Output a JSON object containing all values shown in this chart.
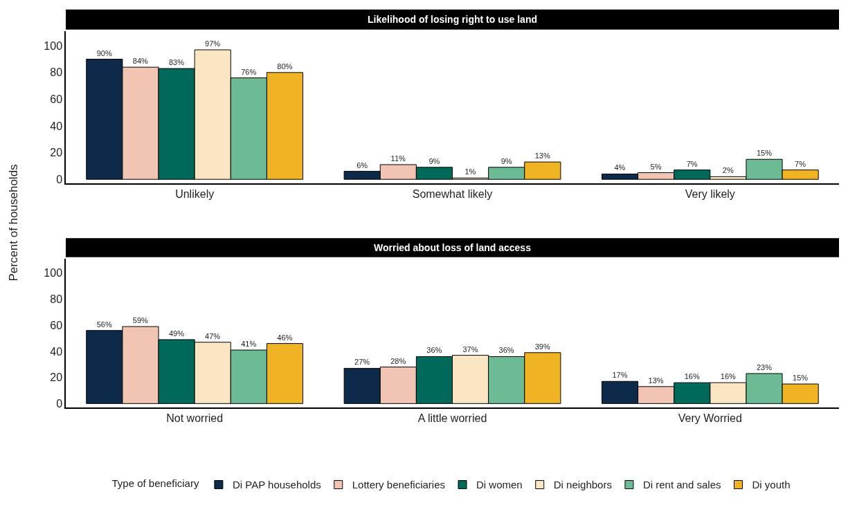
{
  "chart_data": [
    {
      "type": "bar",
      "title": "Likelihood of losing right to use land",
      "ylabel": "Percent of households",
      "categories": [
        "Unlikely",
        "Somewhat likely",
        "Very likely"
      ],
      "ylim": [
        -3,
        111
      ],
      "yticks": [
        0,
        20,
        40,
        60,
        80,
        100
      ],
      "series": [
        {
          "color": "#0d2a4a",
          "values": [
            90,
            6,
            4
          ],
          "value_labels": [
            "90%",
            "6%",
            "4%"
          ]
        },
        {
          "color": "#f2c4b4",
          "values": [
            84,
            11,
            5
          ],
          "value_labels": [
            "84%",
            "11%",
            "5%"
          ]
        },
        {
          "color": "#00695a",
          "values": [
            83,
            9,
            7
          ],
          "value_labels": [
            "83%",
            "9%",
            "7%"
          ]
        },
        {
          "color": "#fbe6c4",
          "values": [
            97,
            1,
            2
          ],
          "value_labels": [
            "97%",
            "1%",
            "2%"
          ]
        },
        {
          "color": "#6cbb94",
          "values": [
            76,
            9,
            15
          ],
          "value_labels": [
            "76%",
            "9%",
            "15%"
          ]
        },
        {
          "color": "#f0b323",
          "values": [
            80,
            13,
            7
          ],
          "value_labels": [
            "80%",
            "13%",
            "7%"
          ]
        }
      ]
    },
    {
      "type": "bar",
      "title": "Worried about loss of land access",
      "categories": [
        "Not worried",
        "A little worried",
        "Very Worried"
      ],
      "ylim": [
        -3,
        111
      ],
      "yticks": [
        0,
        20,
        40,
        60,
        80,
        100
      ],
      "legend": "bottom",
      "legend_title": "Type of beneficiary",
      "series": [
        {
          "name": "Di PAP households",
          "color": "#0d2a4a",
          "values": [
            56,
            27,
            17
          ],
          "value_labels": [
            "56%",
            "27%",
            "17%"
          ]
        },
        {
          "name": "Lottery beneficiaries",
          "color": "#f2c4b4",
          "values": [
            59,
            28,
            13
          ],
          "value_labels": [
            "59%",
            "28%",
            "13%"
          ]
        },
        {
          "name": "Di women",
          "color": "#00695a",
          "values": [
            49,
            36,
            16
          ],
          "value_labels": [
            "49%",
            "36%",
            "16%"
          ]
        },
        {
          "name": "Di neighbors",
          "color": "#fbe6c4",
          "values": [
            47,
            37,
            16
          ],
          "value_labels": [
            "47%",
            "37%",
            "16%"
          ]
        },
        {
          "name": "Di rent and sales",
          "color": "#6cbb94",
          "values": [
            41,
            36,
            23
          ],
          "value_labels": [
            "41%",
            "36%",
            "23%"
          ]
        },
        {
          "name": "Di youth",
          "color": "#f0b323",
          "values": [
            46,
            39,
            15
          ],
          "value_labels": [
            "46%",
            "39%",
            "15%"
          ]
        }
      ]
    }
  ]
}
